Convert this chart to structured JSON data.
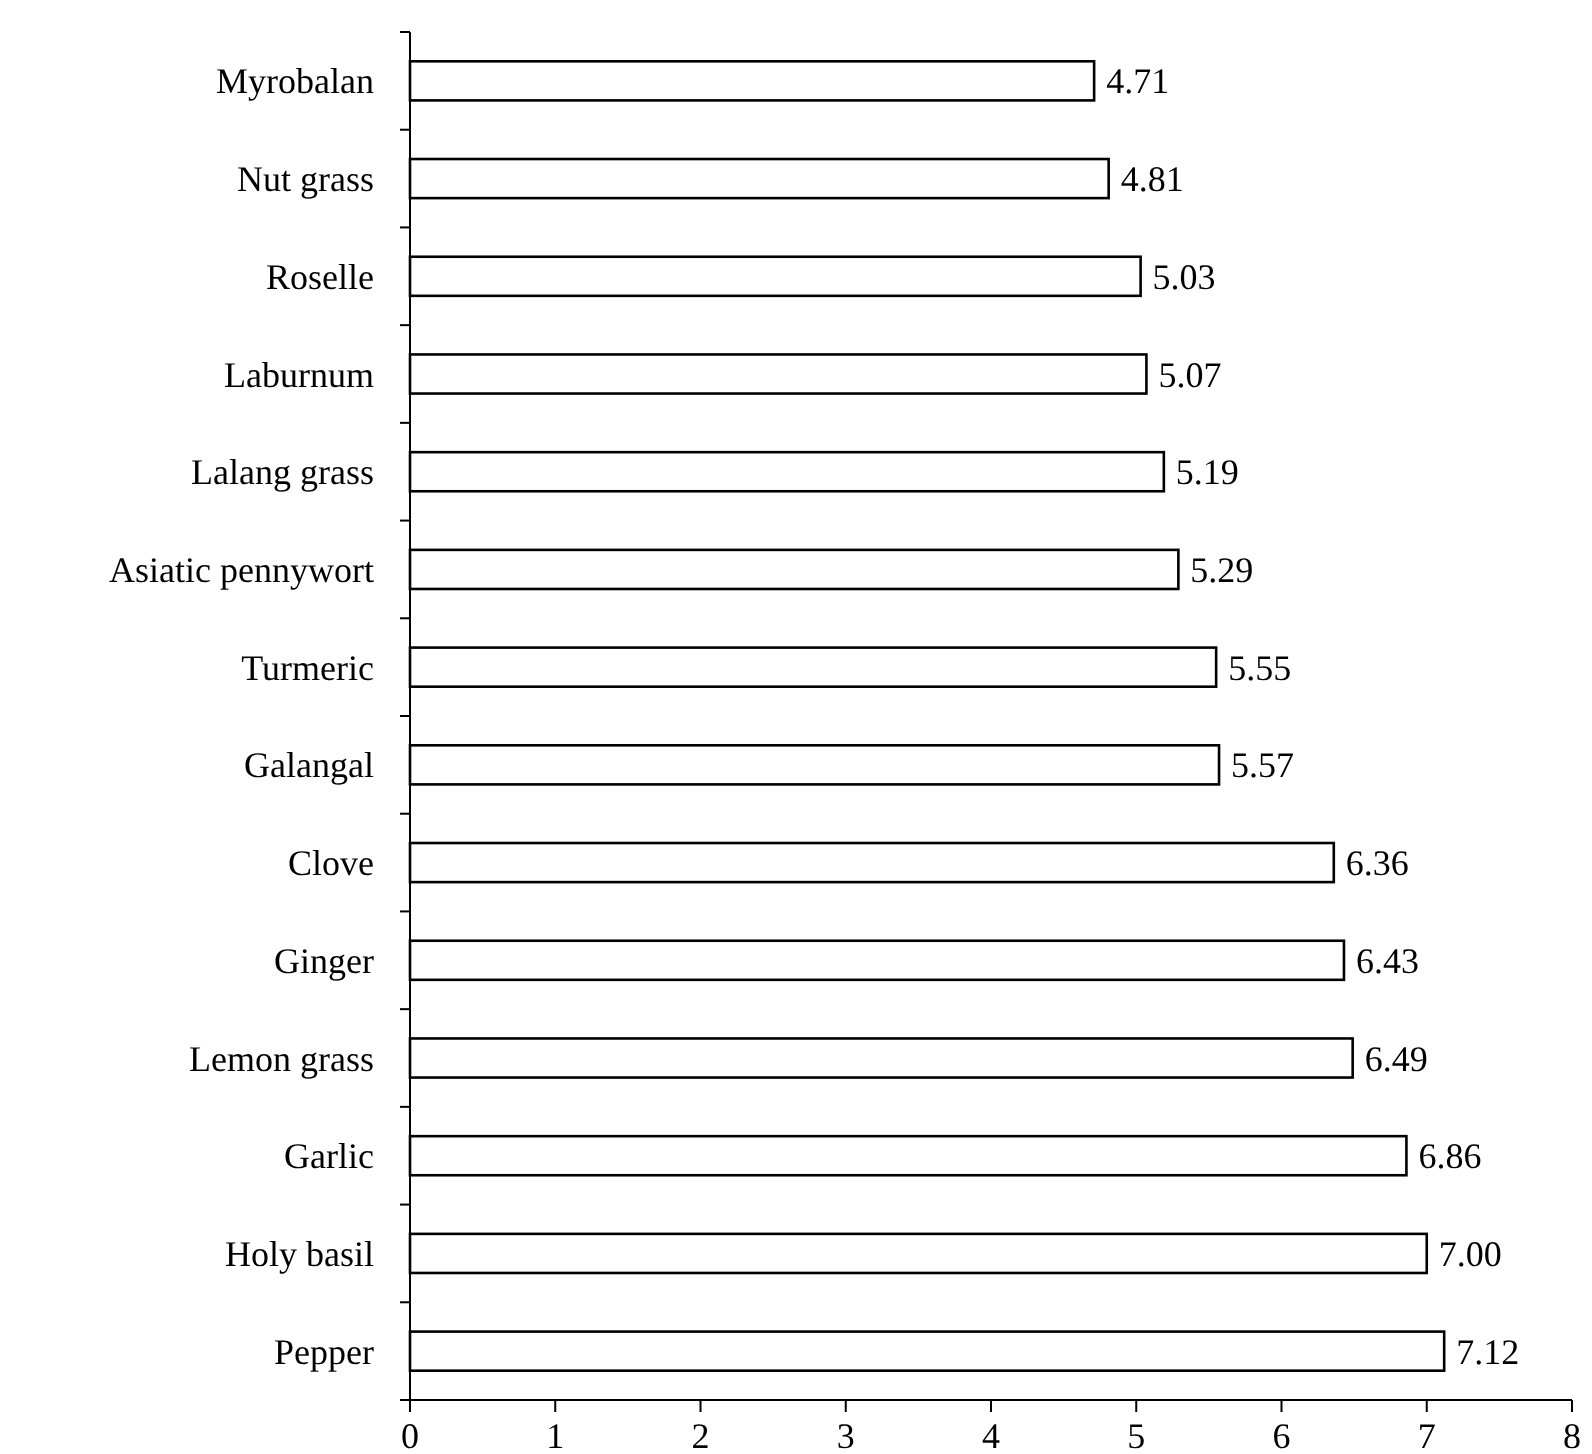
{
  "chart_data": {
    "type": "bar",
    "orientation": "horizontal",
    "categories": [
      "Myrobalan",
      "Nut grass",
      "Roselle",
      "Laburnum",
      "Lalang grass",
      "Asiatic pennywort",
      "Turmeric",
      "Galangal",
      "Clove",
      "Ginger",
      "Lemon grass",
      "Garlic",
      "Holy basil",
      "Pepper"
    ],
    "values": [
      4.71,
      4.81,
      5.03,
      5.07,
      5.19,
      5.29,
      5.55,
      5.57,
      6.36,
      6.43,
      6.49,
      6.86,
      7.0,
      7.12
    ],
    "value_labels": [
      "4.71",
      "4.81",
      "5.03",
      "5.07",
      "5.19",
      "5.29",
      "5.55",
      "5.57",
      "6.36",
      "6.43",
      "6.49",
      "6.86",
      "7.00",
      "7.12"
    ],
    "color": "#ffffff",
    "xlim": [
      0,
      8
    ],
    "xticks": [
      0,
      1,
      2,
      3,
      4,
      5,
      6,
      7,
      8
    ],
    "grid": false
  }
}
